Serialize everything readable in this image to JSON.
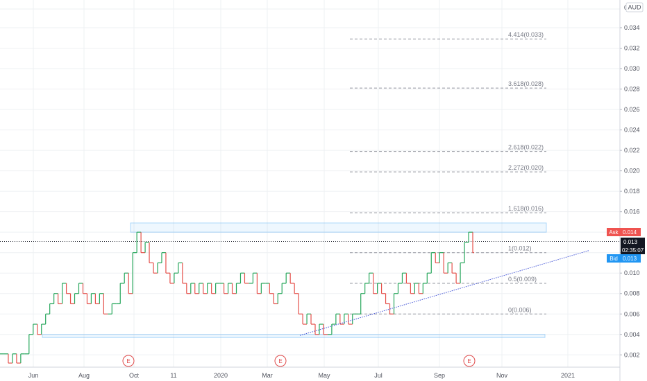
{
  "chart_data": {
    "type": "line",
    "title": "",
    "xlabel": "",
    "ylabel": "",
    "currency": "AUD",
    "ylim": [
      0.0008,
      0.0361
    ],
    "y_ticks": [
      0.002,
      0.004,
      0.006,
      0.008,
      0.01,
      0.012,
      0.014,
      0.016,
      0.018,
      0.02,
      0.022,
      0.024,
      0.026,
      0.028,
      0.03,
      0.032,
      0.034
    ],
    "y_top_label": "0",
    "x_ticks": [
      "Jun",
      "Aug",
      "Oct",
      "11",
      "2020",
      "Mar",
      "May",
      "Jul",
      "Sep",
      "Nov",
      "2021"
    ],
    "grid": true,
    "series": [
      {
        "color_up": "#26a65b",
        "color_down": "#e5504a",
        "values": [
          0.0021,
          0.0021,
          0.0012,
          0.0021,
          0.0012,
          0.0021,
          0.0021,
          0.004,
          0.005,
          0.004,
          0.005,
          0.006,
          0.007,
          0.008,
          0.007,
          0.009,
          0.008,
          0.007,
          0.008,
          0.009,
          0.008,
          0.007,
          0.008,
          0.007,
          0.008,
          0.006,
          0.006,
          0.007,
          0.007,
          0.009,
          0.01,
          0.008,
          0.012,
          0.014,
          0.012,
          0.013,
          0.011,
          0.01,
          0.011,
          0.012,
          0.01,
          0.009,
          0.01,
          0.011,
          0.009,
          0.008,
          0.009,
          0.008,
          0.009,
          0.008,
          0.009,
          0.008,
          0.009,
          0.009,
          0.008,
          0.009,
          0.008,
          0.009,
          0.01,
          0.009,
          0.009,
          0.01,
          0.008,
          0.009,
          0.009,
          0.008,
          0.007,
          0.008,
          0.009,
          0.01,
          0.009,
          0.008,
          0.006,
          0.005,
          0.006,
          0.005,
          0.004,
          0.005,
          0.004,
          0.004,
          0.005,
          0.006,
          0.005,
          0.006,
          0.005,
          0.006,
          0.006,
          0.008,
          0.009,
          0.01,
          0.008,
          0.009,
          0.008,
          0.007,
          0.006,
          0.008,
          0.009,
          0.01,
          0.009,
          0.008,
          0.009,
          0.008,
          0.009,
          0.01,
          0.012,
          0.011,
          0.012,
          0.01,
          0.011,
          0.01,
          0.009,
          0.011,
          0.013,
          0.014,
          0.012
        ]
      }
    ],
    "annotations": {
      "resistance_zone": [
        0.014,
        0.0149
      ],
      "support_zone": [
        0.0037,
        0.004
      ],
      "trendline": {
        "from": 0.0039,
        "to": 0.0122
      },
      "current_price_line": 0.0131,
      "fib_levels": [
        {
          "label": "4.414(0.033)",
          "value": 0.0329
        },
        {
          "label": "3.618(0.028)",
          "value": 0.0281
        },
        {
          "label": "2.618(0.022)",
          "value": 0.0219
        },
        {
          "label": "2.272(0.020)",
          "value": 0.0199
        },
        {
          "label": "1.618(0.016)",
          "value": 0.0159
        },
        {
          "label": "1(0.012)",
          "value": 0.012
        },
        {
          "label": "0.5(0.009)",
          "value": 0.009
        },
        {
          "label": "0(0.006)",
          "value": 0.006
        }
      ],
      "events": [
        "E",
        "E",
        "E"
      ]
    },
    "price_tags": {
      "ask_label": "Ask",
      "ask_value": "0.014",
      "last_value": "0.013",
      "countdown": "02:35:07",
      "bid_label": "Bid",
      "bid_value": "0.013"
    }
  }
}
